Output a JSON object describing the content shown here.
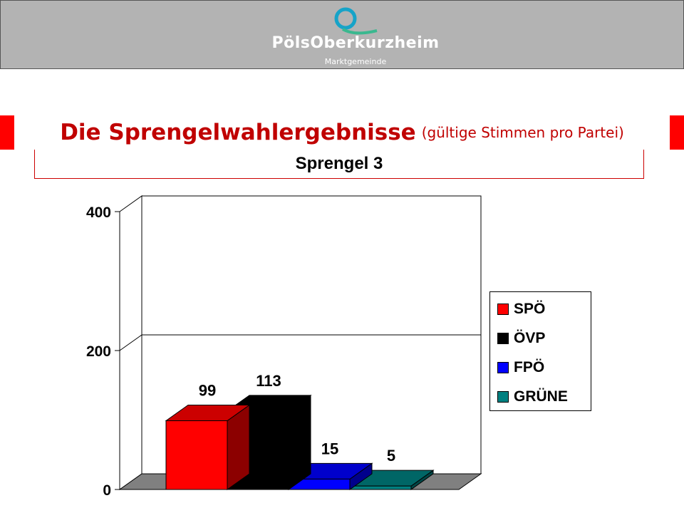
{
  "header": {
    "logo_name": "PölsOberkurzheim",
    "logo_sub": "Marktgemeinde"
  },
  "title": {
    "main": "Die Sprengelwahlergebnisse",
    "sub": "(gültige Stimmen pro Partei)"
  },
  "subtitle": "Sprengel 3",
  "colors": {
    "band": "#ff0000",
    "title_text": "#c00000"
  },
  "chart_data": {
    "type": "bar",
    "categories": [
      "SPÖ",
      "ÖVP",
      "FPÖ",
      "GRÜNE"
    ],
    "values": [
      99,
      113,
      15,
      5
    ],
    "data_labels": [
      "99",
      "113",
      "15",
      "5"
    ],
    "colors": [
      "#ff0000",
      "#000000",
      "#0000ff",
      "#008080"
    ],
    "ylim": [
      0,
      400
    ],
    "yticks": [
      "0",
      "200",
      "400"
    ],
    "grid": true,
    "legend": "right",
    "style": "3d"
  }
}
